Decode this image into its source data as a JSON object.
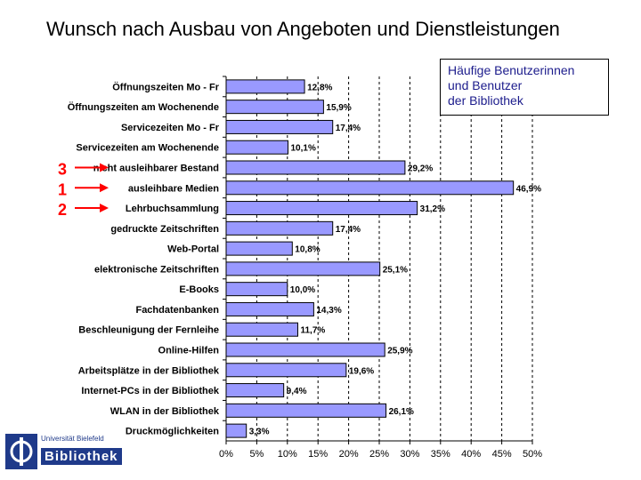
{
  "chart_data": {
    "type": "bar",
    "orientation": "horizontal",
    "title": "Wunsch nach Ausbau von Angeboten und Dienstleistungen",
    "categories": [
      "Öffnungszeiten Mo - Fr",
      "Öffnungszeiten am Wochenende",
      "Servicezeiten Mo - Fr",
      "Servicezeiten am Wochenende",
      "nicht ausleihbarer Bestand",
      "ausleihbare Medien",
      "Lehrbuchsammlung",
      "gedruckte Zeitschriften",
      "Web-Portal",
      "elektronische Zeitschriften",
      "E-Books",
      "Fachdatenbanken",
      "Beschleunigung der Fernleihe",
      "Online-Hilfen",
      "Arbeitsplätze in der Bibliothek",
      "Internet-PCs in der Bibliothek",
      "WLAN in der Bibliothek",
      "Druckmöglichkeiten"
    ],
    "values": [
      12.8,
      15.9,
      17.4,
      10.1,
      29.2,
      46.9,
      31.2,
      17.4,
      10.8,
      25.1,
      10.0,
      14.3,
      11.7,
      25.9,
      19.6,
      9.4,
      26.1,
      3.3
    ],
    "value_labels": [
      "12,8%",
      "15,9%",
      "17,4%",
      "10,1%",
      "29,2%",
      "46,9%",
      "31,2%",
      "17,4%",
      "10,8%",
      "25,1%",
      "10,0%",
      "14,3%",
      "11,7%",
      "25,9%",
      "19,6%",
      "9,4%",
      "26,1%",
      "3,3%"
    ],
    "xlim": [
      0,
      50
    ],
    "x_ticks": [
      "0%",
      "5%",
      "10%",
      "15%",
      "20%",
      "25%",
      "30%",
      "35%",
      "40%",
      "45%",
      "50%"
    ],
    "grid": "vertical dashed",
    "bar_color": "#9999ff",
    "legend_text": [
      "Häufige Benutzerinnen",
      "und Benutzer",
      "der Bibliothek"
    ],
    "legend_color": "#1c1c8c",
    "rank_markers": [
      {
        "label": "3",
        "category": "nicht ausleihbarer Bestand"
      },
      {
        "label": "1",
        "category": "ausleihbare Medien"
      },
      {
        "label": "2",
        "category": "Lehrbuchsammlung"
      }
    ],
    "marker_color": "#ff0000"
  },
  "logo": {
    "small_text": "Universität Bielefeld",
    "big_text": "Bibliothek",
    "color": "#1f3a8a"
  }
}
